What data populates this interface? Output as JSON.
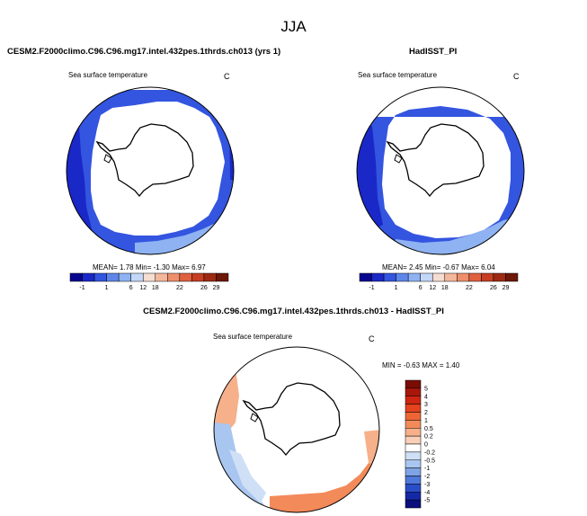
{
  "figure_title": "JJA",
  "chart_data": [
    {
      "type": "heatmap",
      "panel_title": "CESM2.F2000climo.C96.C96.mg17.intel.432pes.1thrds.ch013 (yrs 1)",
      "variable": "Sea surface temperature",
      "units": "C",
      "projection": "south-polar stereographic",
      "stats": {
        "mean_label": "MEAN=",
        "mean": "1.78",
        "min_label": "Min=",
        "min": "-1.30",
        "max_label": "Max=",
        "max": "6.97"
      },
      "colorbar": {
        "orientation": "horizontal",
        "labels": [
          "-1",
          "1",
          "6",
          "12",
          "18",
          "22",
          "26",
          "29"
        ],
        "colors": [
          "#08068f",
          "#1a28c8",
          "#3355e0",
          "#5e86ea",
          "#8fb2f2",
          "#c3d8f8",
          "#f6ddd2",
          "#f3b79c",
          "#ee8f6c",
          "#e0613f",
          "#c63f22",
          "#9e2a14",
          "#6d1808"
        ]
      }
    },
    {
      "type": "heatmap",
      "panel_title": "HadISST_PI",
      "variable": "Sea surface temperature",
      "units": "C",
      "projection": "south-polar stereographic",
      "stats": {
        "mean_label": "MEAN=",
        "mean": "2.45",
        "min_label": "Min=",
        "min": "-0.67",
        "max_label": "Max=",
        "max": "6.04"
      },
      "colorbar": {
        "orientation": "horizontal",
        "labels": [
          "-1",
          "1",
          "6",
          "12",
          "18",
          "22",
          "26",
          "29"
        ],
        "colors": [
          "#08068f",
          "#1a28c8",
          "#3355e0",
          "#5e86ea",
          "#8fb2f2",
          "#c3d8f8",
          "#f6ddd2",
          "#f3b79c",
          "#ee8f6c",
          "#e0613f",
          "#c63f22",
          "#9e2a14",
          "#6d1808"
        ]
      }
    },
    {
      "type": "heatmap",
      "panel_title": "CESM2.F2000climo.C96.C96.mg17.intel.432pes.1thrds.ch013 - HadISST_PI",
      "variable": "Sea surface temperature",
      "units": "C",
      "projection": "south-polar stereographic",
      "stats": {
        "min_label": "MIN =",
        "min": "-0.63",
        "max_label": "MAX =",
        "max": "1.40"
      },
      "colorbar": {
        "orientation": "vertical",
        "labels": [
          "5",
          "4",
          "3",
          "2",
          "1",
          "0.5",
          "0.2",
          "0",
          "-0.2",
          "-0.5",
          "-1",
          "-2",
          "-3",
          "-4",
          "-5"
        ],
        "colors": [
          "#7a0d06",
          "#a8170c",
          "#cd2612",
          "#e3431e",
          "#ee6534",
          "#f38a5a",
          "#f6b08a",
          "#f9d0b7",
          "#ffffff",
          "#cfe0f6",
          "#a8c6ef",
          "#7ea4e6",
          "#4f79da",
          "#2a4ec7",
          "#1529a6",
          "#0a0f7c"
        ]
      }
    }
  ]
}
